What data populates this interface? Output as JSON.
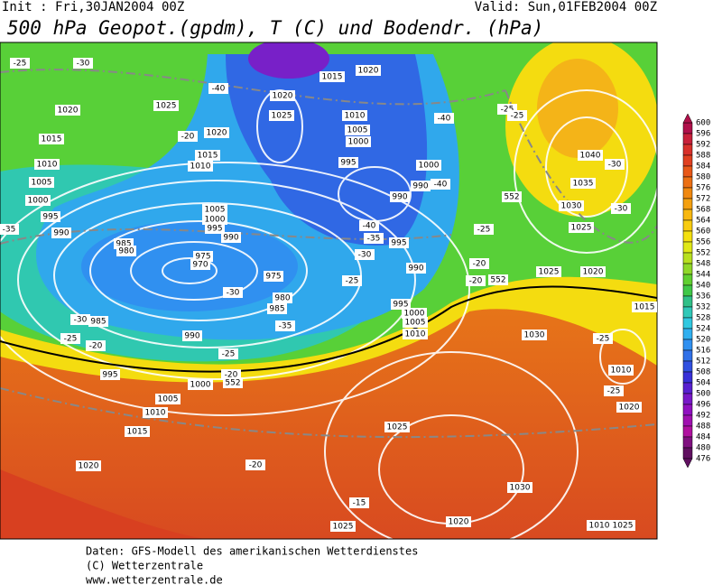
{
  "header": {
    "init": "Init : Fri,30JAN2004 00Z",
    "valid": "Valid: Sun,01FEB2004 00Z",
    "title": "500 hPa Geopot.(gpdm), T (C) und Bodendr. (hPa)"
  },
  "colorbar": {
    "labels": [
      600,
      596,
      592,
      588,
      584,
      580,
      576,
      572,
      568,
      564,
      560,
      556,
      552,
      548,
      544,
      540,
      536,
      532,
      528,
      524,
      520,
      516,
      512,
      508,
      504,
      500,
      496,
      492,
      488,
      484,
      480,
      476
    ],
    "colors": [
      "#b0104a",
      "#c8203a",
      "#d8302a",
      "#e04020",
      "#e85818",
      "#ec7014",
      "#f08810",
      "#f4a010",
      "#f8b810",
      "#f8cc10",
      "#f4e010",
      "#e0e818",
      "#b8e020",
      "#90d828",
      "#60d030",
      "#40c848",
      "#30c088",
      "#30c8b8",
      "#30c8e0",
      "#30b0f0",
      "#3090f0",
      "#3070e8",
      "#3050e0",
      "#3830d8",
      "#5820d0",
      "#7818c8",
      "#9010c0",
      "#a010b0",
      "#b010a0",
      "#801080",
      "#601060"
    ]
  },
  "map": {
    "labels": [
      "1015",
      "1020",
      "1020",
      "1025",
      "1010",
      "1005",
      "1000",
      "995",
      "1000",
      "990",
      "990",
      "995",
      "990",
      "995",
      "1000",
      "1005",
      "1010",
      "1025",
      "1020",
      "1015",
      "1010",
      "1005",
      "1000",
      "995",
      "990",
      "985",
      "980",
      "975",
      "970",
      "975",
      "980",
      "985",
      "985",
      "990",
      "995",
      "1000",
      "1005",
      "1010",
      "1015",
      "1020",
      "1015",
      "1010",
      "1005",
      "1000",
      "995",
      "990",
      "1020",
      "1040",
      "1035",
      "1030",
      "1025",
      "1025",
      "1020",
      "1015",
      "1030",
      "1010",
      "1020",
      "1025",
      "1030",
      "1020",
      "1025",
      "1010",
      "1025",
      "-25",
      "-30",
      "-40",
      "-20",
      "-25",
      "-25",
      "-30",
      "-30",
      "-40",
      "-40",
      "-40",
      "-35",
      "-30",
      "-25",
      "-25",
      "-20",
      "-20",
      "-30",
      "-35",
      "-30",
      "-25",
      "-20",
      "-25",
      "-20",
      "-20",
      "-15",
      "-35",
      "-25",
      "-25",
      "552",
      "552",
      "552"
    ]
  },
  "footer": {
    "lines": [
      "Daten: GFS-Modell des amerikanischen Wetterdienstes",
      "(C) Wetterzentrale",
      "www.wetterzentrale.de"
    ]
  }
}
